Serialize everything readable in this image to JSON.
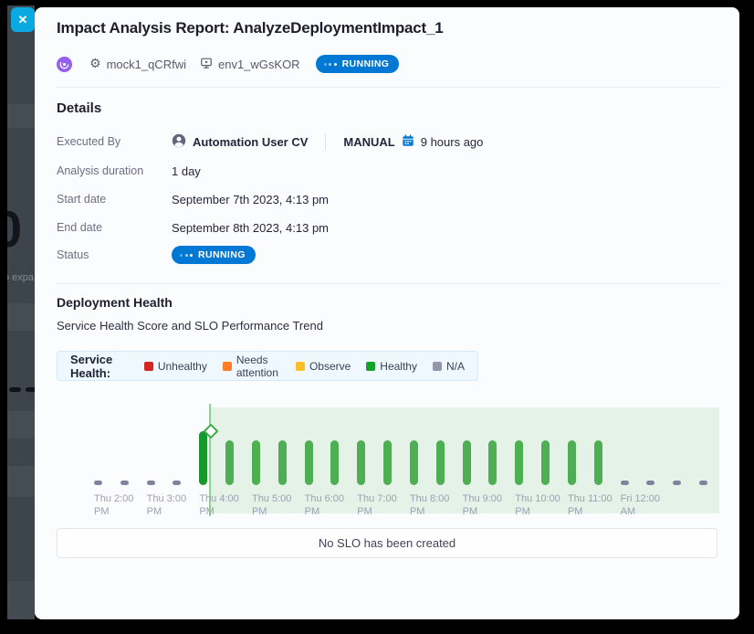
{
  "window": {
    "close_glyph": "✕"
  },
  "backdrop": {
    "partial_number": "0",
    "partial_text": "o expa"
  },
  "header": {
    "title": "Impact Analysis Report: AnalyzeDeploymentImpact_1",
    "service_name": "mock1_qCRfwi",
    "environment_name": "env1_wGsKOR",
    "status": "RUNNING",
    "status_color": "#0278d5",
    "module_color": "#9560ef"
  },
  "details": {
    "heading": "Details",
    "executed_by": {
      "label": "Executed By",
      "user": "Automation User CV",
      "trigger": "MANUAL",
      "time": "9 hours ago"
    },
    "rows": [
      {
        "label": "Analysis duration",
        "value": "1 day"
      },
      {
        "label": "Start date",
        "value": "September 7th 2023, 4:13 pm"
      },
      {
        "label": "End date",
        "value": "September 8th 2023, 4:13 pm"
      }
    ],
    "status_row": {
      "label": "Status",
      "value": "RUNNING"
    }
  },
  "deployment_health": {
    "heading": "Deployment Health",
    "subtitle": "Service Health Score and SLO Performance Trend",
    "legend": {
      "title": "Service Health:",
      "items": [
        {
          "label": "Unhealthy",
          "color": "#d2261f"
        },
        {
          "label": "Needs attention",
          "color": "#fd7e24"
        },
        {
          "label": "Observe",
          "color": "#fcbf29"
        },
        {
          "label": "Healthy",
          "color": "#16a02c"
        },
        {
          "label": "N/A",
          "color": "#9496ab"
        }
      ]
    },
    "slo_message": "No SLO has been created"
  },
  "chart_data": {
    "type": "bar",
    "interval_minutes": 30,
    "statuses": [
      "na",
      "na",
      "na",
      "na",
      "healthy",
      "healthy",
      "healthy",
      "healthy",
      "healthy",
      "healthy",
      "healthy",
      "healthy",
      "healthy",
      "healthy",
      "healthy",
      "healthy",
      "healthy",
      "healthy",
      "healthy",
      "healthy",
      "na",
      "na",
      "na",
      "na"
    ],
    "emphasis_index": 4,
    "deployment_marker_slot": 4.25,
    "tick_labels": [
      {
        "line1": "Thu 2:00",
        "line2": "PM"
      },
      {
        "line1": "Thu 3:00",
        "line2": "PM"
      },
      {
        "line1": "Thu 4:00",
        "line2": "PM"
      },
      {
        "line1": "Thu 5:00",
        "line2": "PM"
      },
      {
        "line1": "Thu 6:00",
        "line2": "PM"
      },
      {
        "line1": "Thu 7:00",
        "line2": "PM"
      },
      {
        "line1": "Thu 8:00",
        "line2": "PM"
      },
      {
        "line1": "Thu 9:00",
        "line2": "PM"
      },
      {
        "line1": "Thu 10:00",
        "line2": "PM"
      },
      {
        "line1": "Thu 11:00",
        "line2": "PM"
      },
      {
        "line1": "Fri 12:00",
        "line2": "AM"
      }
    ],
    "colors": {
      "healthy": "#4daf52",
      "healthy_emphasis": "#16982c",
      "na": "#7f839c",
      "marker": "#86d889",
      "shade": "rgba(77,175,82,0.13)"
    }
  }
}
